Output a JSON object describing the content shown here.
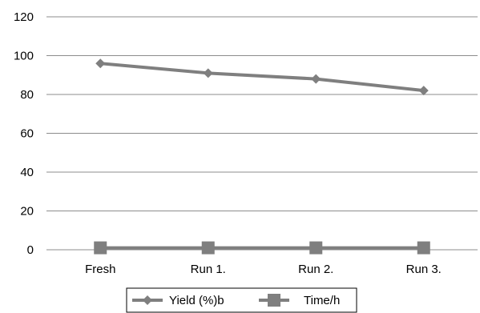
{
  "chart_data": {
    "type": "line",
    "categories": [
      "Fresh",
      "Run 1.",
      "Run 2.",
      "Run 3."
    ],
    "series": [
      {
        "name": "Yield (%)b",
        "values": [
          96,
          91,
          88,
          82
        ],
        "color": "#7f7f7f",
        "marker": "diamond"
      },
      {
        "name": "Time/h",
        "values": [
          1,
          1,
          1,
          1
        ],
        "color": "#7f7f7f",
        "marker": "square"
      }
    ],
    "title": "",
    "xlabel": "",
    "ylabel": "",
    "ylim": [
      0,
      120
    ],
    "yticks": [
      "0",
      "20",
      "40",
      "60",
      "80",
      "100",
      "120"
    ],
    "grid": true,
    "legend_position": "bottom"
  }
}
